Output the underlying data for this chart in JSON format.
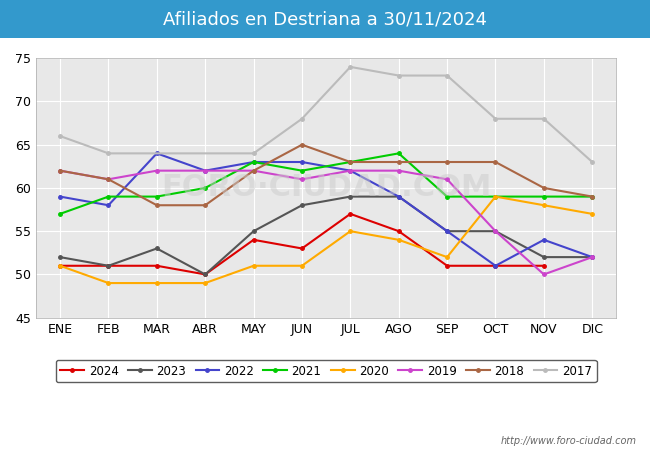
{
  "title": "Afiliados en Destriana a 30/11/2024",
  "title_bg": "#3399cc",
  "ylim": [
    45,
    75
  ],
  "yticks": [
    45,
    50,
    55,
    60,
    65,
    70,
    75
  ],
  "months": [
    "ENE",
    "FEB",
    "MAR",
    "ABR",
    "MAY",
    "JUN",
    "JUL",
    "AGO",
    "SEP",
    "OCT",
    "NOV",
    "DIC"
  ],
  "watermark": "FORO·CIUDAD.COM",
  "url": "http://www.foro-ciudad.com",
  "series": [
    {
      "year": "2024",
      "color": "#dd0000",
      "data": [
        51,
        51,
        51,
        50,
        54,
        53,
        57,
        55,
        51,
        51,
        51,
        null
      ]
    },
    {
      "year": "2023",
      "color": "#555555",
      "data": [
        52,
        51,
        53,
        50,
        55,
        58,
        59,
        59,
        55,
        55,
        52,
        52
      ]
    },
    {
      "year": "2022",
      "color": "#4444cc",
      "data": [
        59,
        58,
        64,
        62,
        63,
        63,
        62,
        59,
        55,
        51,
        54,
        52
      ]
    },
    {
      "year": "2021",
      "color": "#00cc00",
      "data": [
        57,
        59,
        59,
        60,
        63,
        62,
        63,
        64,
        59,
        59,
        59,
        59
      ]
    },
    {
      "year": "2020",
      "color": "#ffaa00",
      "data": [
        51,
        49,
        49,
        49,
        51,
        51,
        55,
        54,
        52,
        59,
        58,
        57
      ]
    },
    {
      "year": "2019",
      "color": "#cc44cc",
      "data": [
        62,
        61,
        62,
        62,
        62,
        61,
        62,
        62,
        61,
        55,
        50,
        52
      ]
    },
    {
      "year": "2018",
      "color": "#aa6644",
      "data": [
        62,
        61,
        58,
        58,
        62,
        65,
        63,
        63,
        63,
        63,
        60,
        59
      ]
    },
    {
      "year": "2017",
      "color": "#bbbbbb",
      "data": [
        66,
        64,
        null,
        null,
        64,
        68,
        74,
        73,
        73,
        68,
        68,
        63
      ]
    }
  ]
}
